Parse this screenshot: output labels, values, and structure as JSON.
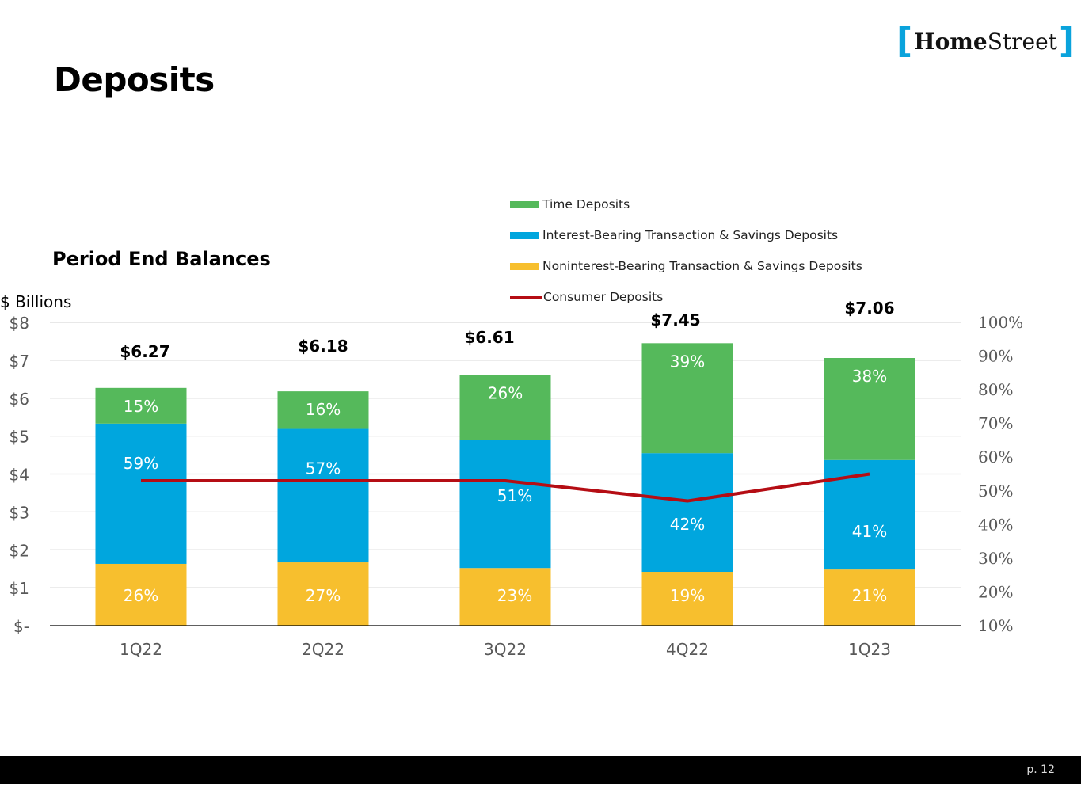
{
  "header": {
    "title": "Deposits",
    "logo": {
      "bracket_left": "[",
      "bold_part": "Home",
      "regular_part": "Street",
      "bracket_right": "]"
    }
  },
  "subtitle": "Period End Balances",
  "units_label": "$ Billions",
  "footer": {
    "page_label": "p. 12"
  },
  "colors": {
    "time_deposits": "#55b95b",
    "interest_bearing": "#00a6de",
    "noninterest_bearing": "#f7bf2e",
    "consumer_line": "#b50d14",
    "brand_bracket": "#0aa3dc"
  },
  "legend": [
    {
      "label": "Time Deposits",
      "kind": "box",
      "color": "#55b95b"
    },
    {
      "label": "Interest-Bearing Transaction & Savings Deposits",
      "kind": "box",
      "color": "#00a6de"
    },
    {
      "label": "Noninterest-Bearing Transaction & Savings Deposits",
      "kind": "box",
      "color": "#f7bf2e"
    },
    {
      "label": "Consumer Deposits",
      "kind": "line",
      "color": "#b50d14"
    }
  ],
  "chart_data": {
    "type": "bar",
    "stacked": true,
    "title": "Period End Balances",
    "ylabel": "$ Billions",
    "ylim": [
      0,
      8
    ],
    "y_ticks": [
      "$-",
      "$1",
      "$2",
      "$3",
      "$4",
      "$5",
      "$6",
      "$7",
      "$8"
    ],
    "y2lim": [
      10,
      100
    ],
    "y2_ticks": [
      "10%",
      "20%",
      "30%",
      "40%",
      "50%",
      "60%",
      "70%",
      "80%",
      "90%",
      "100%"
    ],
    "grid": true,
    "legend_position": "top-right",
    "categories": [
      "1Q22",
      "2Q22",
      "3Q22",
      "4Q22",
      "1Q23"
    ],
    "totals": [
      6.27,
      6.18,
      6.61,
      7.45,
      7.06
    ],
    "total_labels": [
      "$6.27",
      "$6.18",
      "$6.61",
      "$7.45",
      "$7.06"
    ],
    "series": [
      {
        "name": "Noninterest-Bearing Transaction & Savings Deposits",
        "color": "#f7bf2e",
        "values": [
          1.63,
          1.67,
          1.52,
          1.42,
          1.48
        ],
        "labels": [
          "26%",
          "27%",
          "23%",
          "19%",
          "21%"
        ]
      },
      {
        "name": "Interest-Bearing Transaction & Savings Deposits",
        "color": "#00a6de",
        "values": [
          3.7,
          3.52,
          3.37,
          3.13,
          2.89
        ],
        "labels": [
          "59%",
          "57%",
          "51%",
          "42%",
          "41%"
        ]
      },
      {
        "name": "Time Deposits",
        "color": "#55b95b",
        "values": [
          0.94,
          0.99,
          1.72,
          2.9,
          2.69
        ],
        "labels": [
          "15%",
          "16%",
          "26%",
          "39%",
          "38%"
        ]
      }
    ],
    "line_series": {
      "name": "Consumer Deposits",
      "axis": "right",
      "color": "#b50d14",
      "values": [
        53,
        53,
        53,
        47,
        55
      ]
    }
  }
}
